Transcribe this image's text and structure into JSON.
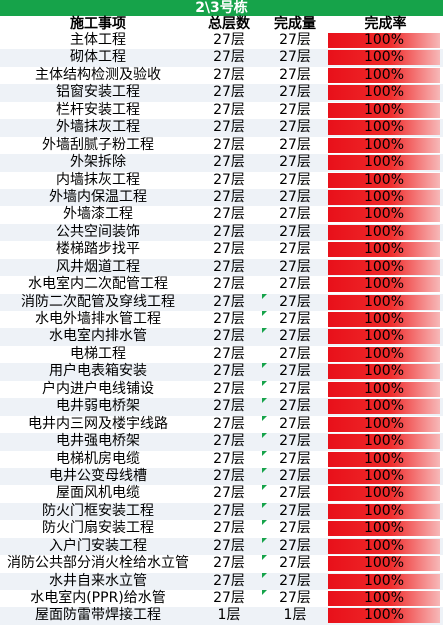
{
  "sheet": {
    "title": "2\\3号栋",
    "headers": {
      "item": "施工事项",
      "total": "总层数",
      "done": "完成量",
      "rate": "完成率"
    },
    "colors": {
      "title_bg": "#16a34a",
      "bar_red": "#e8101a",
      "alt_row": "#eef2f7",
      "tick_green": "#16a34a"
    },
    "rows": [
      {
        "item": "主体工程",
        "total": "27层",
        "done": "27层",
        "rate": "100%",
        "rate_fraction": 1.0,
        "tick": false
      },
      {
        "item": "砌体工程",
        "total": "27层",
        "done": "27层",
        "rate": "100%",
        "rate_fraction": 1.0,
        "tick": false
      },
      {
        "item": "主体结构检测及验收",
        "total": "27层",
        "done": "27层",
        "rate": "100%",
        "rate_fraction": 1.0,
        "tick": false
      },
      {
        "item": "铝窗安装工程",
        "total": "27层",
        "done": "27层",
        "rate": "100%",
        "rate_fraction": 1.0,
        "tick": false
      },
      {
        "item": "栏杆安装工程",
        "total": "27层",
        "done": "27层",
        "rate": "100%",
        "rate_fraction": 1.0,
        "tick": false
      },
      {
        "item": "外墙抹灰工程",
        "total": "27层",
        "done": "27层",
        "rate": "100%",
        "rate_fraction": 1.0,
        "tick": false
      },
      {
        "item": "外墙刮腻子粉工程",
        "total": "27层",
        "done": "27层",
        "rate": "100%",
        "rate_fraction": 1.0,
        "tick": false
      },
      {
        "item": "外架拆除",
        "total": "27层",
        "done": "27层",
        "rate": "100%",
        "rate_fraction": 1.0,
        "tick": false
      },
      {
        "item": "内墙抹灰工程",
        "total": "27层",
        "done": "27层",
        "rate": "100%",
        "rate_fraction": 1.0,
        "tick": false
      },
      {
        "item": "外墙内保温工程",
        "total": "27层",
        "done": "27层",
        "rate": "100%",
        "rate_fraction": 1.0,
        "tick": false
      },
      {
        "item": "外墙漆工程",
        "total": "27层",
        "done": "27层",
        "rate": "100%",
        "rate_fraction": 1.0,
        "tick": false
      },
      {
        "item": "公共空间装饰",
        "total": "27层",
        "done": "27层",
        "rate": "100%",
        "rate_fraction": 1.0,
        "tick": false
      },
      {
        "item": "楼梯踏步找平",
        "total": "27层",
        "done": "27层",
        "rate": "100%",
        "rate_fraction": 1.0,
        "tick": false
      },
      {
        "item": "风井烟道工程",
        "total": "27层",
        "done": "27层",
        "rate": "100%",
        "rate_fraction": 1.0,
        "tick": false
      },
      {
        "item": "水电室内二次配管工程",
        "total": "27层",
        "done": "27层",
        "rate": "100%",
        "rate_fraction": 1.0,
        "tick": false
      },
      {
        "item": "消防二次配管及穿线工程",
        "total": "27层",
        "done": "27层",
        "rate": "100%",
        "rate_fraction": 1.0,
        "tick": true
      },
      {
        "item": "水电外墙排水管工程",
        "total": "27层",
        "done": "27层",
        "rate": "100%",
        "rate_fraction": 1.0,
        "tick": true
      },
      {
        "item": "水电室内排水管",
        "total": "27层",
        "done": "27层",
        "rate": "100%",
        "rate_fraction": 1.0,
        "tick": true
      },
      {
        "item": "电梯工程",
        "total": "27层",
        "done": "27层",
        "rate": "100%",
        "rate_fraction": 1.0,
        "tick": false
      },
      {
        "item": "用户电表箱安装",
        "total": "27层",
        "done": "27层",
        "rate": "100%",
        "rate_fraction": 1.0,
        "tick": true
      },
      {
        "item": "户内进户电线铺设",
        "total": "27层",
        "done": "27层",
        "rate": "100%",
        "rate_fraction": 1.0,
        "tick": true
      },
      {
        "item": "电井弱电桥架",
        "total": "27层",
        "done": "27层",
        "rate": "100%",
        "rate_fraction": 1.0,
        "tick": true
      },
      {
        "item": "电井内三网及楼宇线路",
        "total": "27层",
        "done": "27层",
        "rate": "100%",
        "rate_fraction": 1.0,
        "tick": true
      },
      {
        "item": "电井强电桥架",
        "total": "27层",
        "done": "27层",
        "rate": "100%",
        "rate_fraction": 1.0,
        "tick": true
      },
      {
        "item": "电梯机房电缆",
        "total": "27层",
        "done": "27层",
        "rate": "100%",
        "rate_fraction": 1.0,
        "tick": true
      },
      {
        "item": "电井公变母线槽",
        "total": "27层",
        "done": "27层",
        "rate": "100%",
        "rate_fraction": 1.0,
        "tick": true
      },
      {
        "item": "屋面风机电缆",
        "total": "27层",
        "done": "27层",
        "rate": "100%",
        "rate_fraction": 1.0,
        "tick": true
      },
      {
        "item": "防火门框安装工程",
        "total": "27层",
        "done": "27层",
        "rate": "100%",
        "rate_fraction": 1.0,
        "tick": true
      },
      {
        "item": "防火门扇安装工程",
        "total": "27层",
        "done": "27层",
        "rate": "100%",
        "rate_fraction": 1.0,
        "tick": true
      },
      {
        "item": "入户门安装工程",
        "total": "27层",
        "done": "27层",
        "rate": "100%",
        "rate_fraction": 1.0,
        "tick": true
      },
      {
        "item": "消防公共部分消火栓给水立管",
        "total": "27层",
        "done": "27层",
        "rate": "100%",
        "rate_fraction": 1.0,
        "tick": true
      },
      {
        "item": "水井自来水立管",
        "total": "27层",
        "done": "27层",
        "rate": "100%",
        "rate_fraction": 1.0,
        "tick": true
      },
      {
        "item": "水电室内(PPR)给水管",
        "total": "27层",
        "done": "27层",
        "rate": "100%",
        "rate_fraction": 1.0,
        "tick": true
      },
      {
        "item": "屋面防雷带焊接工程",
        "total": "1层",
        "done": "1层",
        "rate": "100%",
        "rate_fraction": 1.0,
        "tick": false
      }
    ]
  }
}
